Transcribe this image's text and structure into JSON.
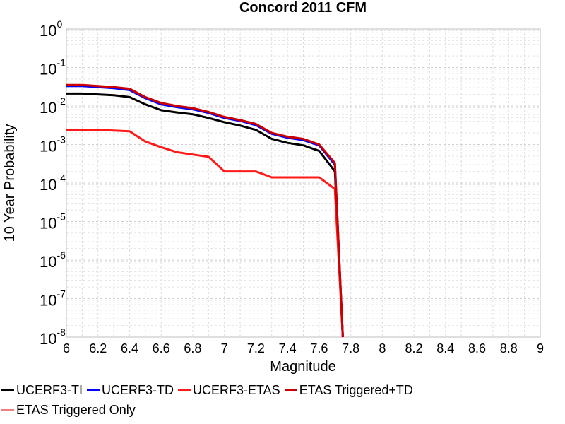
{
  "chart_data": {
    "type": "line",
    "title": "Concord 2011 CFM",
    "xlabel": "Magnitude",
    "ylabel": "10 Year Probability",
    "xlim": [
      6,
      9
    ],
    "ylim": [
      1e-08,
      1
    ],
    "yscale": "log",
    "grid": true,
    "legend_placement": "bottom",
    "x_ticks": [
      "6",
      "6.2",
      "6.4",
      "6.6",
      "6.8",
      "7",
      "7.2",
      "7.4",
      "7.6",
      "7.8",
      "8",
      "8.2",
      "8.4",
      "8.6",
      "8.8",
      "9"
    ],
    "y_ticks": [
      {
        "base": "10",
        "exp": "-8"
      },
      {
        "base": "10",
        "exp": "-7"
      },
      {
        "base": "10",
        "exp": "-6"
      },
      {
        "base": "10",
        "exp": "-5"
      },
      {
        "base": "10",
        "exp": "-4"
      },
      {
        "base": "10",
        "exp": "-3"
      },
      {
        "base": "10",
        "exp": "-2"
      },
      {
        "base": "10",
        "exp": "-1"
      },
      {
        "base": "10",
        "exp": "0"
      }
    ],
    "series": [
      {
        "name": "UCERF3-TI",
        "color": "#000000",
        "x": [
          6.0,
          6.1,
          6.2,
          6.3,
          6.4,
          6.5,
          6.6,
          6.7,
          6.8,
          6.9,
          7.0,
          7.1,
          7.2,
          7.3,
          7.4,
          7.5,
          7.6,
          7.7,
          7.75
        ],
        "y": [
          0.021,
          0.021,
          0.02,
          0.019,
          0.017,
          0.011,
          0.0078,
          0.0068,
          0.0061,
          0.0049,
          0.0038,
          0.0031,
          0.0024,
          0.0014,
          0.0011,
          0.00095,
          0.00068,
          0.0002,
          1e-08
        ]
      },
      {
        "name": "UCERF3-TD",
        "color": "#0000ff",
        "x": [
          6.0,
          6.1,
          6.2,
          6.3,
          6.4,
          6.5,
          6.6,
          6.7,
          6.8,
          6.9,
          7.0,
          7.1,
          7.2,
          7.3,
          7.4,
          7.5,
          7.6,
          7.7,
          7.75
        ],
        "y": [
          0.033,
          0.033,
          0.031,
          0.029,
          0.026,
          0.016,
          0.011,
          0.0093,
          0.0082,
          0.0066,
          0.0049,
          0.0041,
          0.0032,
          0.0019,
          0.0015,
          0.0013,
          0.00095,
          0.0003,
          1e-08
        ]
      },
      {
        "name": "UCERF3-ETAS",
        "color": "#ff1a1a",
        "x": [
          6.0,
          6.1,
          6.2,
          6.3,
          6.4,
          6.5,
          6.6,
          6.7,
          6.8,
          6.9,
          7.0,
          7.1,
          7.2,
          7.3,
          7.4,
          7.5,
          7.6,
          7.7,
          7.75
        ],
        "y": [
          0.0024,
          0.0024,
          0.0024,
          0.0023,
          0.0022,
          0.0012,
          0.00085,
          0.00063,
          0.00055,
          0.00048,
          0.0002,
          0.0002,
          0.0002,
          0.00014,
          0.00014,
          0.00014,
          0.00014,
          7e-05,
          1e-08
        ]
      },
      {
        "name": "ETAS Triggered+TD",
        "color": "#cc0000",
        "x": [
          6.0,
          6.1,
          6.2,
          6.3,
          6.4,
          6.5,
          6.6,
          6.7,
          6.8,
          6.9,
          7.0,
          7.1,
          7.2,
          7.3,
          7.4,
          7.5,
          7.6,
          7.7,
          7.75
        ],
        "y": [
          0.035,
          0.035,
          0.033,
          0.031,
          0.028,
          0.017,
          0.012,
          0.01,
          0.0088,
          0.007,
          0.0052,
          0.0043,
          0.0034,
          0.002,
          0.0016,
          0.0014,
          0.001,
          0.00033,
          1e-08
        ]
      },
      {
        "name": "ETAS Triggered Only",
        "color": "#f08080",
        "x": [],
        "y": []
      }
    ]
  }
}
